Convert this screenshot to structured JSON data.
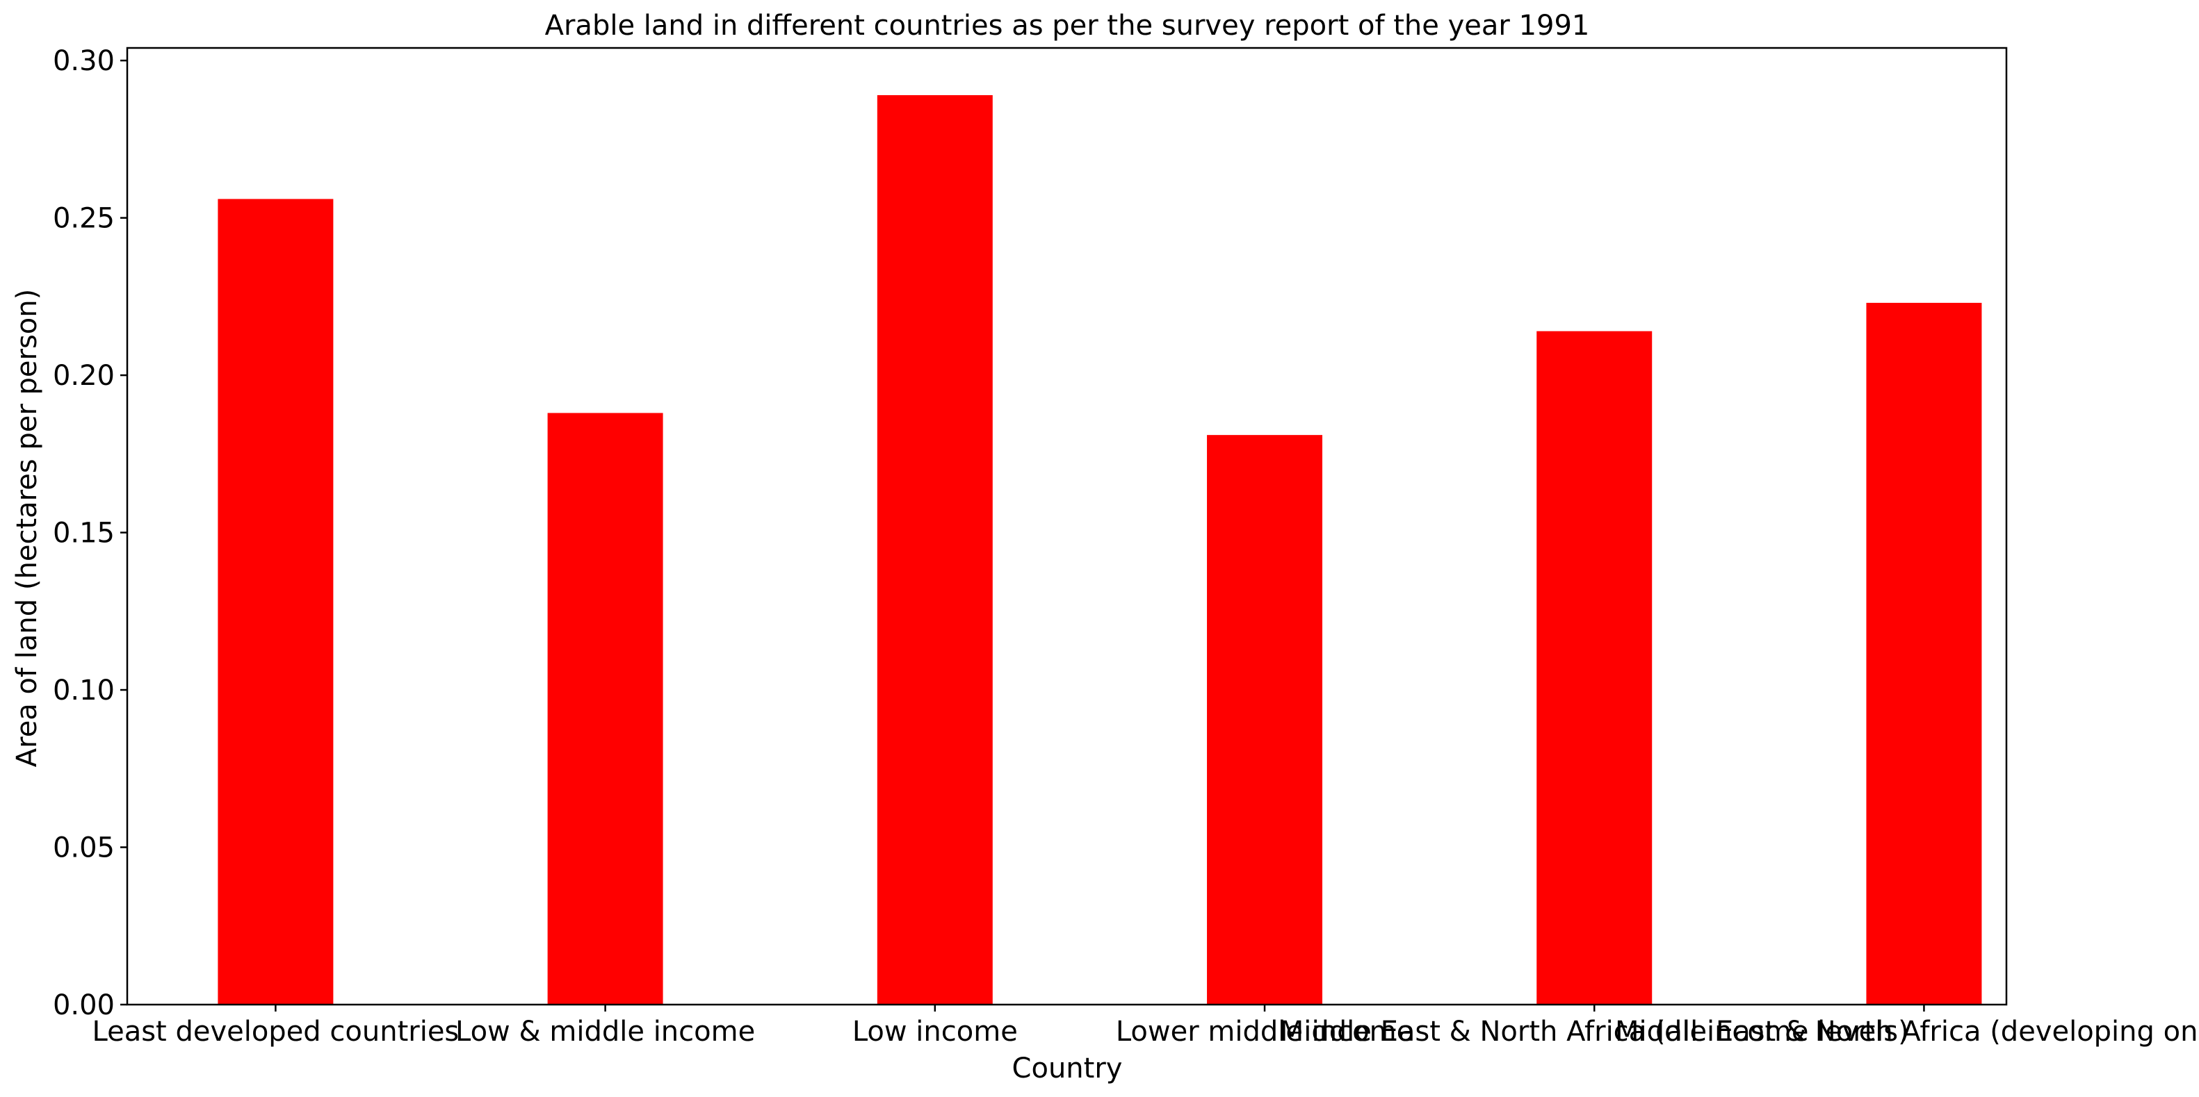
{
  "chart_data": {
    "type": "bar",
    "title": "Arable land in different countries as per the survey report of the year 1991",
    "xlabel": "Country",
    "ylabel": "Area of land (hectares per person)",
    "categories": [
      "Least developed countries",
      "Low & middle income",
      "Low income",
      "Lower middle income",
      "Middle East & North Africa (all income levels)",
      "Middle East & North Africa (developing only)"
    ],
    "values": [
      0.256,
      0.188,
      0.289,
      0.181,
      0.214,
      0.223
    ],
    "ylim": [
      0,
      0.304
    ],
    "yticks": [
      "0.00",
      "0.05",
      "0.10",
      "0.15",
      "0.20",
      "0.25",
      "0.30"
    ],
    "bar_color": "#ff0000",
    "grid": false,
    "legend": "none"
  }
}
